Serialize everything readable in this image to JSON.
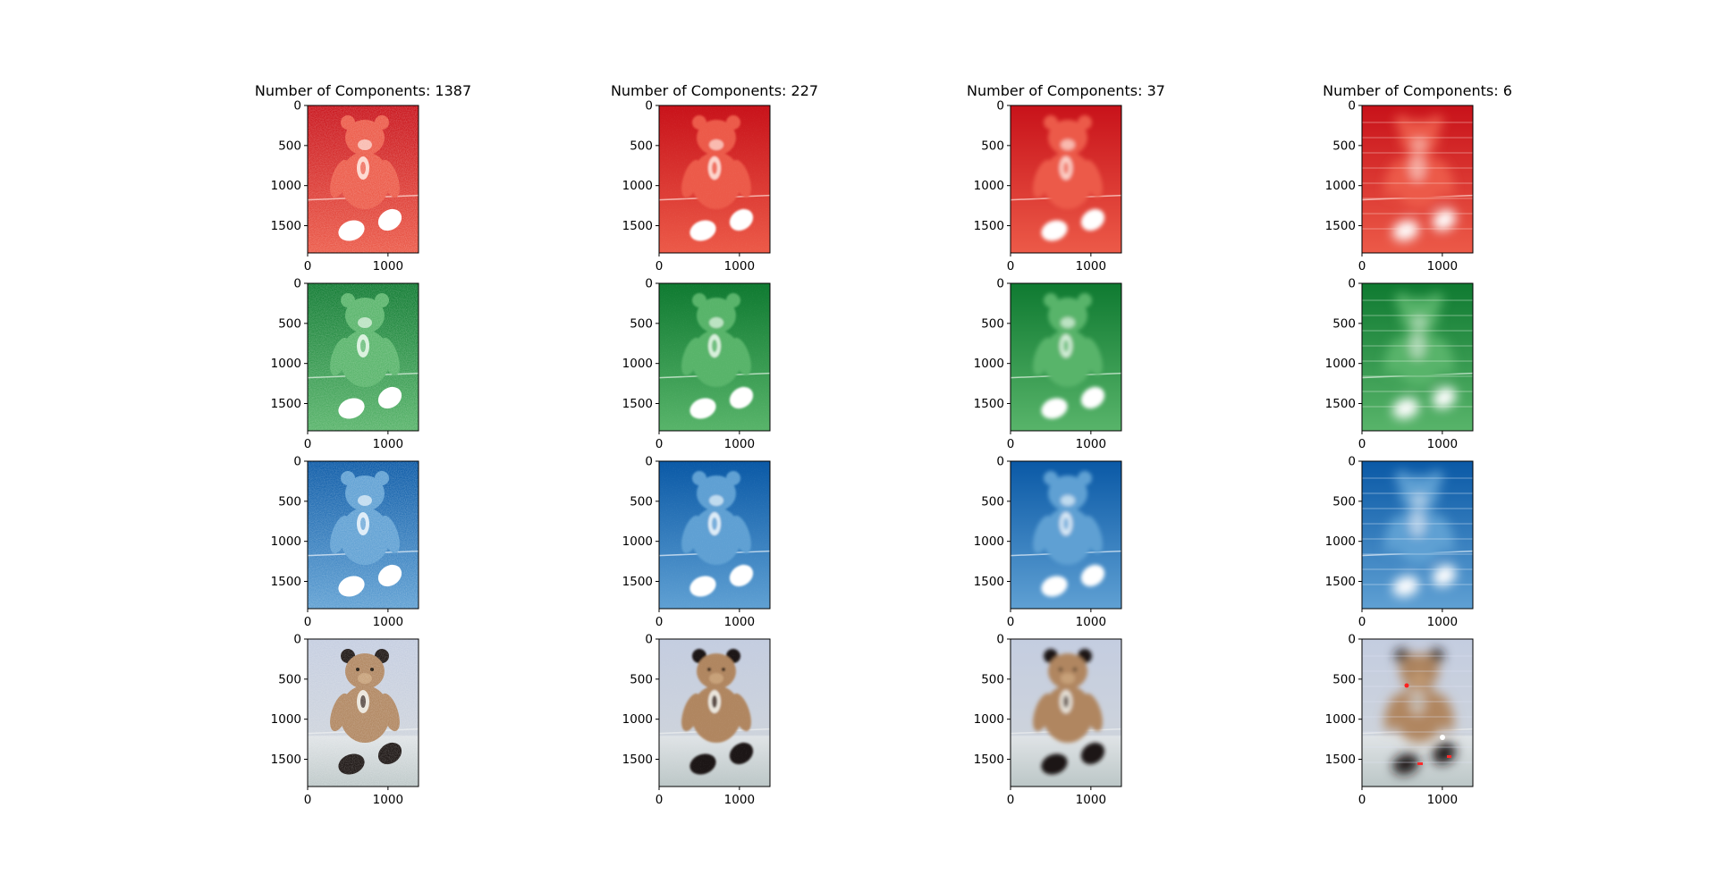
{
  "figure": {
    "columns": [
      {
        "title": "Number of Components: 1387",
        "noise": 0.9,
        "blur": 0.0
      },
      {
        "title": "Number of Components: 227",
        "noise": 0.4,
        "blur": 1.0
      },
      {
        "title": "Number of Components: 37",
        "noise": 0.2,
        "blur": 2.2
      },
      {
        "title": "Number of Components: 6",
        "noise": 0.0,
        "blur": 6.0
      }
    ],
    "rows": [
      {
        "channel": "red",
        "base": "#c8121a",
        "glow": "#ffe3dc",
        "mid": "#ec5a48"
      },
      {
        "channel": "green",
        "base": "#0f7a31",
        "glow": "#e6f6e8",
        "mid": "#58b46a"
      },
      {
        "channel": "blue",
        "base": "#0a59a6",
        "glow": "#eaf3fb",
        "mid": "#5fa0d3"
      },
      {
        "channel": "rgb",
        "base": "#c3ccd6",
        "glow": "#b88d66",
        "mid": "#8b6a4e"
      }
    ],
    "yticks": [
      "0",
      "500",
      "1000",
      "1500"
    ],
    "xticks": [
      "0",
      "1000"
    ]
  },
  "chart_data": {
    "type": "image-grid",
    "grid": {
      "rows": 4,
      "cols": 4
    },
    "components": [
      1387,
      227,
      37,
      6
    ],
    "x_range": [
      0,
      1380
    ],
    "y_range": [
      0,
      1840
    ],
    "x_tick_values": [
      0,
      1000
    ],
    "y_tick_values": [
      0,
      500,
      1000,
      1500
    ]
  }
}
